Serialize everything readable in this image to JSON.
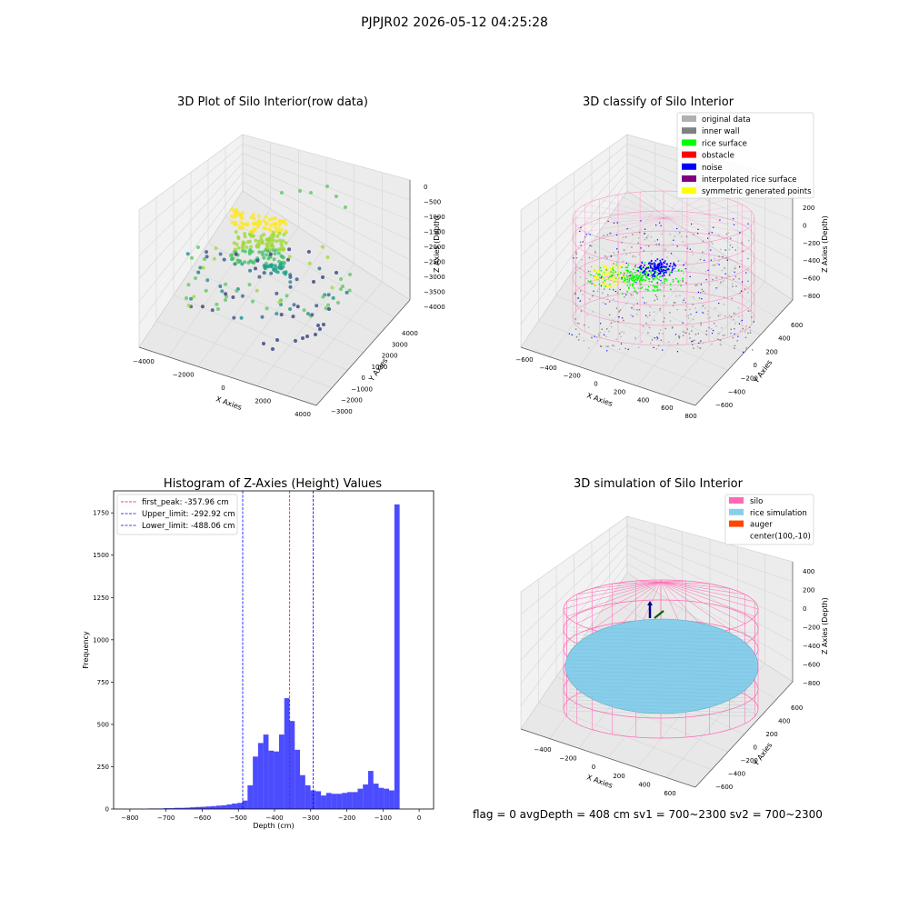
{
  "suptitle": "PJPJR02 2026-05-12 04:25:28",
  "footer": "flag = 0     avgDepth = 408 cm  sv1 = 700~2300  sv2 = 700~2300",
  "colors": {
    "bar": "#0000ff",
    "silo": "#ff69b4",
    "rice_sim": "#87ceeb",
    "auger": "#ff4500",
    "original": "#b0b0b0",
    "inner_wall": "#808080",
    "rice_surface": "#00ff00",
    "obstacle": "#ff0000",
    "noise": "#0000ff",
    "interp": "#800080",
    "symmetric": "#ffff00"
  },
  "chart_data": [
    {
      "type": "scatter",
      "subtype": "3d",
      "title": "3D Plot of Silo Interior(row data)",
      "xlabel": "X Axies",
      "ylabel": "Y Axies",
      "zlabel": "Z Axies (Depth)",
      "xticks": [
        "−4000",
        "−2000",
        "0",
        "2000",
        "4000"
      ],
      "yticks": [
        "−3000",
        "−2000",
        "−1000",
        "0",
        "1000",
        "2000",
        "3000",
        "4000"
      ],
      "zticks": [
        "0",
        "−500",
        "−1000",
        "−1500",
        "−2000",
        "−2500",
        "−3000",
        "−3500",
        "−4000"
      ],
      "colormap": "viridis"
    },
    {
      "type": "scatter",
      "subtype": "3d",
      "title": "3D classify of Silo Interior",
      "xlabel": "X Axies",
      "ylabel": "Y Axies",
      "zlabel": "Z Axies (Depth)",
      "xticks": [
        "−600",
        "−400",
        "−200",
        "0",
        "200",
        "400",
        "600",
        "800"
      ],
      "yticks": [
        "−600",
        "−400",
        "−200",
        "0",
        "200",
        "400",
        "600"
      ],
      "zticks": [
        "200",
        "0",
        "−200",
        "−400",
        "−600",
        "−800"
      ],
      "legend": [
        {
          "label": "original data",
          "color": "#b0b0b0"
        },
        {
          "label": "inner wall",
          "color": "#808080"
        },
        {
          "label": "rice surface",
          "color": "#00ff00"
        },
        {
          "label": "obstacle",
          "color": "#ff0000"
        },
        {
          "label": "noise",
          "color": "#0000ff"
        },
        {
          "label": "interpolated rice surface",
          "color": "#800080"
        },
        {
          "label": "symmetric generated points",
          "color": "#ffff00"
        }
      ]
    },
    {
      "type": "bar",
      "subtype": "histogram",
      "title": "Histogram of Z-Axies (Height) Values",
      "xlabel": "Depth (cm)",
      "ylabel": "Frequency",
      "xlim": [
        -845,
        40
      ],
      "ylim": [
        0,
        1880
      ],
      "xticks": [
        -800,
        -700,
        -600,
        -500,
        -400,
        -300,
        -200,
        -100,
        0
      ],
      "yticks": [
        0,
        250,
        500,
        750,
        1000,
        1250,
        1500,
        1750
      ],
      "bin_edges_start": -750,
      "bin_width": 14.5,
      "values": [
        3,
        3,
        3,
        5,
        5,
        7,
        7,
        8,
        10,
        12,
        13,
        15,
        17,
        20,
        22,
        27,
        32,
        36,
        50,
        140,
        310,
        390,
        440,
        345,
        340,
        440,
        655,
        520,
        350,
        200,
        140,
        110,
        105,
        80,
        95,
        90,
        90,
        95,
        100,
        100,
        120,
        145,
        225,
        150,
        125,
        120,
        110,
        1800
      ],
      "lines": [
        {
          "label": "first_peak: -357.96 cm",
          "x": -357.96,
          "color": "#ff0000"
        },
        {
          "label": "Upper_limit: -292.92 cm",
          "x": -292.92,
          "color": "#0000ff"
        },
        {
          "label": "Lower_limit: -488.06 cm",
          "x": -488.06,
          "color": "#0000ff"
        }
      ]
    },
    {
      "type": "scatter",
      "subtype": "3d",
      "title": "3D simulation of Silo Interior",
      "xlabel": "X Axies",
      "ylabel": "Y Axies",
      "zlabel": "Z Axies (Depth)",
      "xticks": [
        "−400",
        "−200",
        "0",
        "200",
        "400",
        "600"
      ],
      "yticks": [
        "−600",
        "−400",
        "−200",
        "0",
        "200",
        "400",
        "600"
      ],
      "zticks": [
        "400",
        "200",
        "0",
        "−200",
        "−400",
        "−600",
        "−800"
      ],
      "legend": [
        {
          "label": "silo",
          "color": "#ff69b4"
        },
        {
          "label": "rice simulation",
          "color": "#87ceeb"
        },
        {
          "label": "auger",
          "color": "#ff4500"
        },
        {
          "label": "center(100,-10)",
          "color": ""
        }
      ]
    }
  ]
}
